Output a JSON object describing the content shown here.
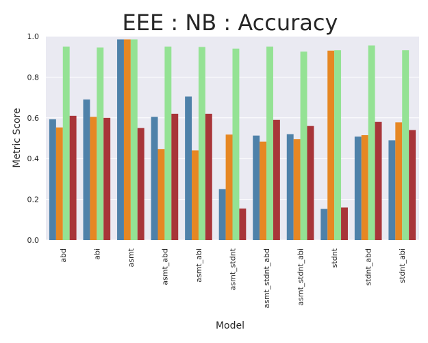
{
  "chart_data": {
    "type": "bar",
    "title": "EEE : NB : Accuracy",
    "xlabel": "Model",
    "ylabel": "Metric Score",
    "ylim": [
      0,
      1.0
    ],
    "yticks": [
      "0.0",
      "0.2",
      "0.4",
      "0.6",
      "0.8",
      "1.0"
    ],
    "grid": true,
    "legend": "none",
    "categories": [
      "abd",
      "abi",
      "asmt",
      "asmt_abd",
      "asmt_abi",
      "asmt_stdnt",
      "asmt_stdnt_abd",
      "asmt_stdnt_abi",
      "stdnt",
      "stdnt_abd",
      "stdnt_abi"
    ],
    "series": [
      {
        "color": "#4e81a9",
        "values": [
          0.593,
          0.69,
          0.985,
          0.605,
          0.705,
          0.25,
          0.513,
          0.52,
          0.153,
          0.508,
          0.49
        ]
      },
      {
        "color": "#e68723",
        "values": [
          0.553,
          0.605,
          0.985,
          0.447,
          0.44,
          0.518,
          0.483,
          0.495,
          0.93,
          0.515,
          0.578
        ]
      },
      {
        "color": "#94e294",
        "values": [
          0.95,
          0.945,
          0.985,
          0.95,
          0.948,
          0.94,
          0.95,
          0.925,
          0.932,
          0.955,
          0.932
        ]
      },
      {
        "color": "#a83539",
        "values": [
          0.61,
          0.6,
          0.55,
          0.62,
          0.62,
          0.155,
          0.59,
          0.56,
          0.16,
          0.58,
          0.54
        ]
      }
    ]
  }
}
